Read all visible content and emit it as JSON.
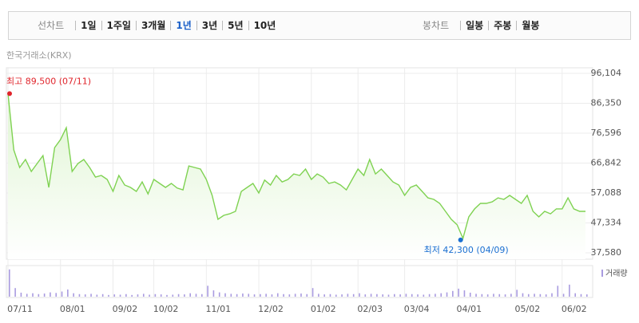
{
  "toolbar": {
    "line_label": "선차트",
    "periods": [
      "1일",
      "1주일",
      "3개월",
      "1년",
      "3년",
      "5년",
      "10년"
    ],
    "selected_period": 3,
    "candle_label": "봉차트",
    "candle_periods": [
      "일봉",
      "주봉",
      "월봉"
    ]
  },
  "source": "한국거래소(KRX)",
  "chart_data": [
    {
      "type": "area",
      "color": "#7fd252",
      "fill_color": "#dff5d2",
      "categories": [
        "07/11",
        null,
        null,
        null,
        null,
        null,
        null,
        null,
        null,
        "08/01",
        null,
        null,
        null,
        null,
        null,
        null,
        null,
        null,
        "09/02",
        null,
        null,
        null,
        null,
        null,
        null,
        "10/02",
        null,
        null,
        null,
        null,
        null,
        null,
        null,
        null,
        "11/01",
        null,
        null,
        null,
        null,
        null,
        null,
        null,
        null,
        "12/02",
        null,
        null,
        null,
        null,
        null,
        null,
        null,
        null,
        "01/02",
        null,
        null,
        null,
        null,
        null,
        null,
        null,
        "02/03",
        null,
        null,
        null,
        null,
        null,
        null,
        null,
        "03/04",
        null,
        null,
        null,
        null,
        null,
        null,
        null,
        null,
        "04/01",
        null,
        null,
        null,
        null,
        null,
        null,
        null,
        null,
        null,
        "05/02",
        null,
        null,
        null,
        null,
        null,
        null,
        null,
        "06/02",
        null,
        null,
        null,
        null
      ],
      "values": [
        89500,
        71100,
        65400,
        68000,
        64100,
        66700,
        69300,
        58900,
        71900,
        74500,
        78400,
        64100,
        66700,
        68000,
        65400,
        62300,
        62800,
        61500,
        57600,
        62800,
        59700,
        58900,
        57600,
        60700,
        56800,
        61500,
        60200,
        58900,
        60200,
        58700,
        58100,
        65900,
        65400,
        64900,
        61500,
        56300,
        48500,
        49800,
        50300,
        51100,
        57600,
        58900,
        60200,
        57100,
        61300,
        59700,
        62800,
        60700,
        61500,
        63300,
        62800,
        64900,
        61500,
        63300,
        62300,
        60200,
        60700,
        59700,
        58100,
        61500,
        64900,
        62800,
        68000,
        63300,
        64900,
        62800,
        60700,
        59700,
        56300,
        58900,
        59700,
        57600,
        55500,
        55000,
        53700,
        51100,
        48500,
        46700,
        42300,
        49300,
        51900,
        53700,
        53700,
        54200,
        55500,
        55000,
        56300,
        55000,
        53700,
        56300,
        51100,
        49300,
        51100,
        50300,
        51900,
        51900,
        55500,
        51900,
        51100,
        51100
      ],
      "ylim": [
        37580,
        96104
      ],
      "yticks": [
        {
          "value": 37580,
          "label": "37,580"
        },
        {
          "value": 47334,
          "label": "47,334"
        },
        {
          "value": 57088,
          "label": "57,088"
        },
        {
          "value": 66842,
          "label": "66,842"
        },
        {
          "value": 76596,
          "label": "76,596"
        },
        {
          "value": 86350,
          "label": "86,350"
        },
        {
          "value": 96104,
          "label": "96,104"
        }
      ],
      "grid": true,
      "high_label": "최고 89,500 (07/11)",
      "high_color": "#e0242b",
      "low_label": "최저 42,300 (04/09)",
      "low_color": "#1a6fd1"
    },
    {
      "type": "bar",
      "name": "거래량",
      "color": "#a99be0",
      "values": [
        95,
        30,
        14,
        10,
        12,
        9,
        11,
        15,
        13,
        18,
        25,
        12,
        9,
        8,
        10,
        7,
        9,
        6,
        8,
        7,
        9,
        6,
        8,
        10,
        7,
        9,
        8,
        6,
        7,
        9,
        8,
        12,
        10,
        9,
        38,
        22,
        15,
        12,
        10,
        9,
        11,
        10,
        8,
        9,
        10,
        8,
        12,
        9,
        8,
        10,
        11,
        9,
        30,
        10,
        8,
        9,
        7,
        8,
        10,
        9,
        12,
        8,
        10,
        9,
        8,
        7,
        9,
        8,
        10,
        9,
        8,
        7,
        9,
        10,
        12,
        15,
        20,
        28,
        22,
        14,
        10,
        9,
        8,
        10,
        9,
        8,
        10,
        24,
        12,
        9,
        10,
        9,
        8,
        12,
        38,
        10,
        42,
        12,
        9,
        8
      ],
      "ylim": [
        0,
        100
      ]
    }
  ]
}
